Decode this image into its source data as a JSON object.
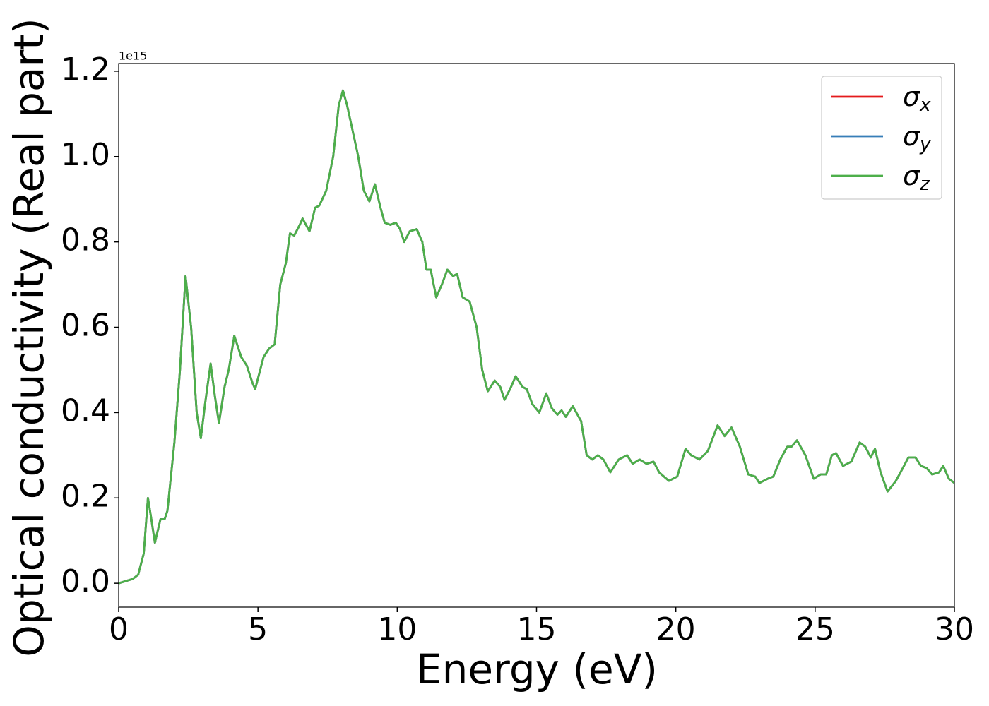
{
  "chart_data": {
    "type": "line",
    "xlabel": "Energy (eV)",
    "ylabel": "Optical conductivity (Real part)",
    "y_offset_label": "1e15",
    "xlim": [
      0,
      30
    ],
    "xticks": [
      0,
      5,
      10,
      15,
      20,
      25,
      30
    ],
    "ylim": [
      -0.056,
      1.218
    ],
    "yticks": [
      {
        "value": 0,
        "label": "0.0"
      },
      0.2,
      0.4,
      0.6,
      0.8,
      {
        "value": 1,
        "label": "1.0"
      },
      1.2
    ],
    "legend": "upper right",
    "x": [
      0,
      0.5,
      0.7,
      0.9,
      1.05,
      1.15,
      1.3,
      1.5,
      1.65,
      1.75,
      2.0,
      2.2,
      2.4,
      2.6,
      2.8,
      2.95,
      3.1,
      3.3,
      3.45,
      3.6,
      3.8,
      3.95,
      4.15,
      4.4,
      4.6,
      4.8,
      4.9,
      5.2,
      5.4,
      5.6,
      5.8,
      6.0,
      6.15,
      6.3,
      6.5,
      6.6,
      6.85,
      7.05,
      7.2,
      7.45,
      7.7,
      7.9,
      8.05,
      8.2,
      8.4,
      8.6,
      8.8,
      9.0,
      9.2,
      9.4,
      9.55,
      9.75,
      9.95,
      10.1,
      10.25,
      10.45,
      10.7,
      10.9,
      11.05,
      11.2,
      11.4,
      11.6,
      11.8,
      12.0,
      12.15,
      12.35,
      12.6,
      12.85,
      13.05,
      13.25,
      13.5,
      13.7,
      13.85,
      14.05,
      14.25,
      14.5,
      14.65,
      14.85,
      15.1,
      15.35,
      15.55,
      15.75,
      15.9,
      16.05,
      16.3,
      16.6,
      16.8,
      17.0,
      17.2,
      17.4,
      17.65,
      17.95,
      18.25,
      18.45,
      18.7,
      18.95,
      19.2,
      19.4,
      19.75,
      20.05,
      20.35,
      20.55,
      20.85,
      21.15,
      21.5,
      21.75,
      22.0,
      22.3,
      22.6,
      22.85,
      23.0,
      23.3,
      23.5,
      23.75,
      24.0,
      24.15,
      24.35,
      24.65,
      24.95,
      25.2,
      25.4,
      25.6,
      25.75,
      26.0,
      26.3,
      26.6,
      26.8,
      27.0,
      27.15,
      27.35,
      27.6,
      27.9,
      28.15,
      28.35,
      28.6,
      28.8,
      29.0,
      29.2,
      29.45,
      29.6,
      29.8,
      30.0
    ],
    "series": [
      {
        "name": "σx",
        "color": "#e41a1c",
        "values": [
          0,
          0.01,
          0.02,
          0.07,
          0.2,
          0.16,
          0.095,
          0.15,
          0.15,
          0.17,
          0.33,
          0.5,
          0.72,
          0.6,
          0.4,
          0.34,
          0.42,
          0.515,
          0.44,
          0.375,
          0.46,
          0.5,
          0.58,
          0.53,
          0.51,
          0.47,
          0.455,
          0.53,
          0.55,
          0.56,
          0.7,
          0.75,
          0.82,
          0.815,
          0.84,
          0.855,
          0.825,
          0.88,
          0.885,
          0.92,
          1.0,
          1.12,
          1.155,
          1.12,
          1.06,
          1.0,
          0.92,
          0.895,
          0.935,
          0.88,
          0.845,
          0.84,
          0.845,
          0.83,
          0.8,
          0.825,
          0.83,
          0.8,
          0.735,
          0.735,
          0.67,
          0.7,
          0.735,
          0.72,
          0.725,
          0.67,
          0.66,
          0.6,
          0.5,
          0.45,
          0.475,
          0.46,
          0.43,
          0.455,
          0.485,
          0.46,
          0.455,
          0.42,
          0.4,
          0.445,
          0.41,
          0.395,
          0.405,
          0.39,
          0.415,
          0.38,
          0.3,
          0.29,
          0.3,
          0.29,
          0.26,
          0.29,
          0.3,
          0.28,
          0.29,
          0.28,
          0.285,
          0.26,
          0.24,
          0.25,
          0.315,
          0.3,
          0.29,
          0.31,
          0.37,
          0.345,
          0.365,
          0.32,
          0.255,
          0.25,
          0.235,
          0.245,
          0.25,
          0.29,
          0.32,
          0.32,
          0.335,
          0.3,
          0.245,
          0.255,
          0.255,
          0.3,
          0.305,
          0.275,
          0.285,
          0.33,
          0.32,
          0.295,
          0.315,
          0.26,
          0.215,
          0.24,
          0.27,
          0.295,
          0.295,
          0.275,
          0.27,
          0.255,
          0.26,
          0.275,
          0.245,
          0.235
        ]
      },
      {
        "name": "σy",
        "color": "#377eb8",
        "values": [
          0,
          0.01,
          0.02,
          0.07,
          0.2,
          0.16,
          0.095,
          0.15,
          0.15,
          0.17,
          0.33,
          0.5,
          0.72,
          0.6,
          0.4,
          0.34,
          0.42,
          0.515,
          0.44,
          0.375,
          0.46,
          0.5,
          0.58,
          0.53,
          0.51,
          0.47,
          0.455,
          0.53,
          0.55,
          0.56,
          0.7,
          0.75,
          0.82,
          0.815,
          0.84,
          0.855,
          0.825,
          0.88,
          0.885,
          0.92,
          1.0,
          1.12,
          1.155,
          1.12,
          1.06,
          1.0,
          0.92,
          0.895,
          0.935,
          0.88,
          0.845,
          0.84,
          0.845,
          0.83,
          0.8,
          0.825,
          0.83,
          0.8,
          0.735,
          0.735,
          0.67,
          0.7,
          0.735,
          0.72,
          0.725,
          0.67,
          0.66,
          0.6,
          0.5,
          0.45,
          0.475,
          0.46,
          0.43,
          0.455,
          0.485,
          0.46,
          0.455,
          0.42,
          0.4,
          0.445,
          0.41,
          0.395,
          0.405,
          0.39,
          0.415,
          0.38,
          0.3,
          0.29,
          0.3,
          0.29,
          0.26,
          0.29,
          0.3,
          0.28,
          0.29,
          0.28,
          0.285,
          0.26,
          0.24,
          0.25,
          0.315,
          0.3,
          0.29,
          0.31,
          0.37,
          0.345,
          0.365,
          0.32,
          0.255,
          0.25,
          0.235,
          0.245,
          0.25,
          0.29,
          0.32,
          0.32,
          0.335,
          0.3,
          0.245,
          0.255,
          0.255,
          0.3,
          0.305,
          0.275,
          0.285,
          0.33,
          0.32,
          0.295,
          0.315,
          0.26,
          0.215,
          0.24,
          0.27,
          0.295,
          0.295,
          0.275,
          0.27,
          0.255,
          0.26,
          0.275,
          0.245,
          0.235
        ]
      },
      {
        "name": "σz",
        "color": "#4daf4a",
        "values": [
          0,
          0.01,
          0.02,
          0.07,
          0.2,
          0.16,
          0.095,
          0.15,
          0.15,
          0.17,
          0.33,
          0.5,
          0.72,
          0.6,
          0.4,
          0.34,
          0.42,
          0.515,
          0.44,
          0.375,
          0.46,
          0.5,
          0.58,
          0.53,
          0.51,
          0.47,
          0.455,
          0.53,
          0.55,
          0.56,
          0.7,
          0.75,
          0.82,
          0.815,
          0.84,
          0.855,
          0.825,
          0.88,
          0.885,
          0.92,
          1.0,
          1.12,
          1.155,
          1.12,
          1.06,
          1.0,
          0.92,
          0.895,
          0.935,
          0.88,
          0.845,
          0.84,
          0.845,
          0.83,
          0.8,
          0.825,
          0.83,
          0.8,
          0.735,
          0.735,
          0.67,
          0.7,
          0.735,
          0.72,
          0.725,
          0.67,
          0.66,
          0.6,
          0.5,
          0.45,
          0.475,
          0.46,
          0.43,
          0.455,
          0.485,
          0.46,
          0.455,
          0.42,
          0.4,
          0.445,
          0.41,
          0.395,
          0.405,
          0.39,
          0.415,
          0.38,
          0.3,
          0.29,
          0.3,
          0.29,
          0.26,
          0.29,
          0.3,
          0.28,
          0.29,
          0.28,
          0.285,
          0.26,
          0.24,
          0.25,
          0.315,
          0.3,
          0.29,
          0.31,
          0.37,
          0.345,
          0.365,
          0.32,
          0.255,
          0.25,
          0.235,
          0.245,
          0.25,
          0.29,
          0.32,
          0.32,
          0.335,
          0.3,
          0.245,
          0.255,
          0.255,
          0.3,
          0.305,
          0.275,
          0.285,
          0.33,
          0.32,
          0.295,
          0.315,
          0.26,
          0.215,
          0.24,
          0.27,
          0.295,
          0.295,
          0.275,
          0.27,
          0.255,
          0.26,
          0.275,
          0.245,
          0.235
        ]
      }
    ]
  }
}
